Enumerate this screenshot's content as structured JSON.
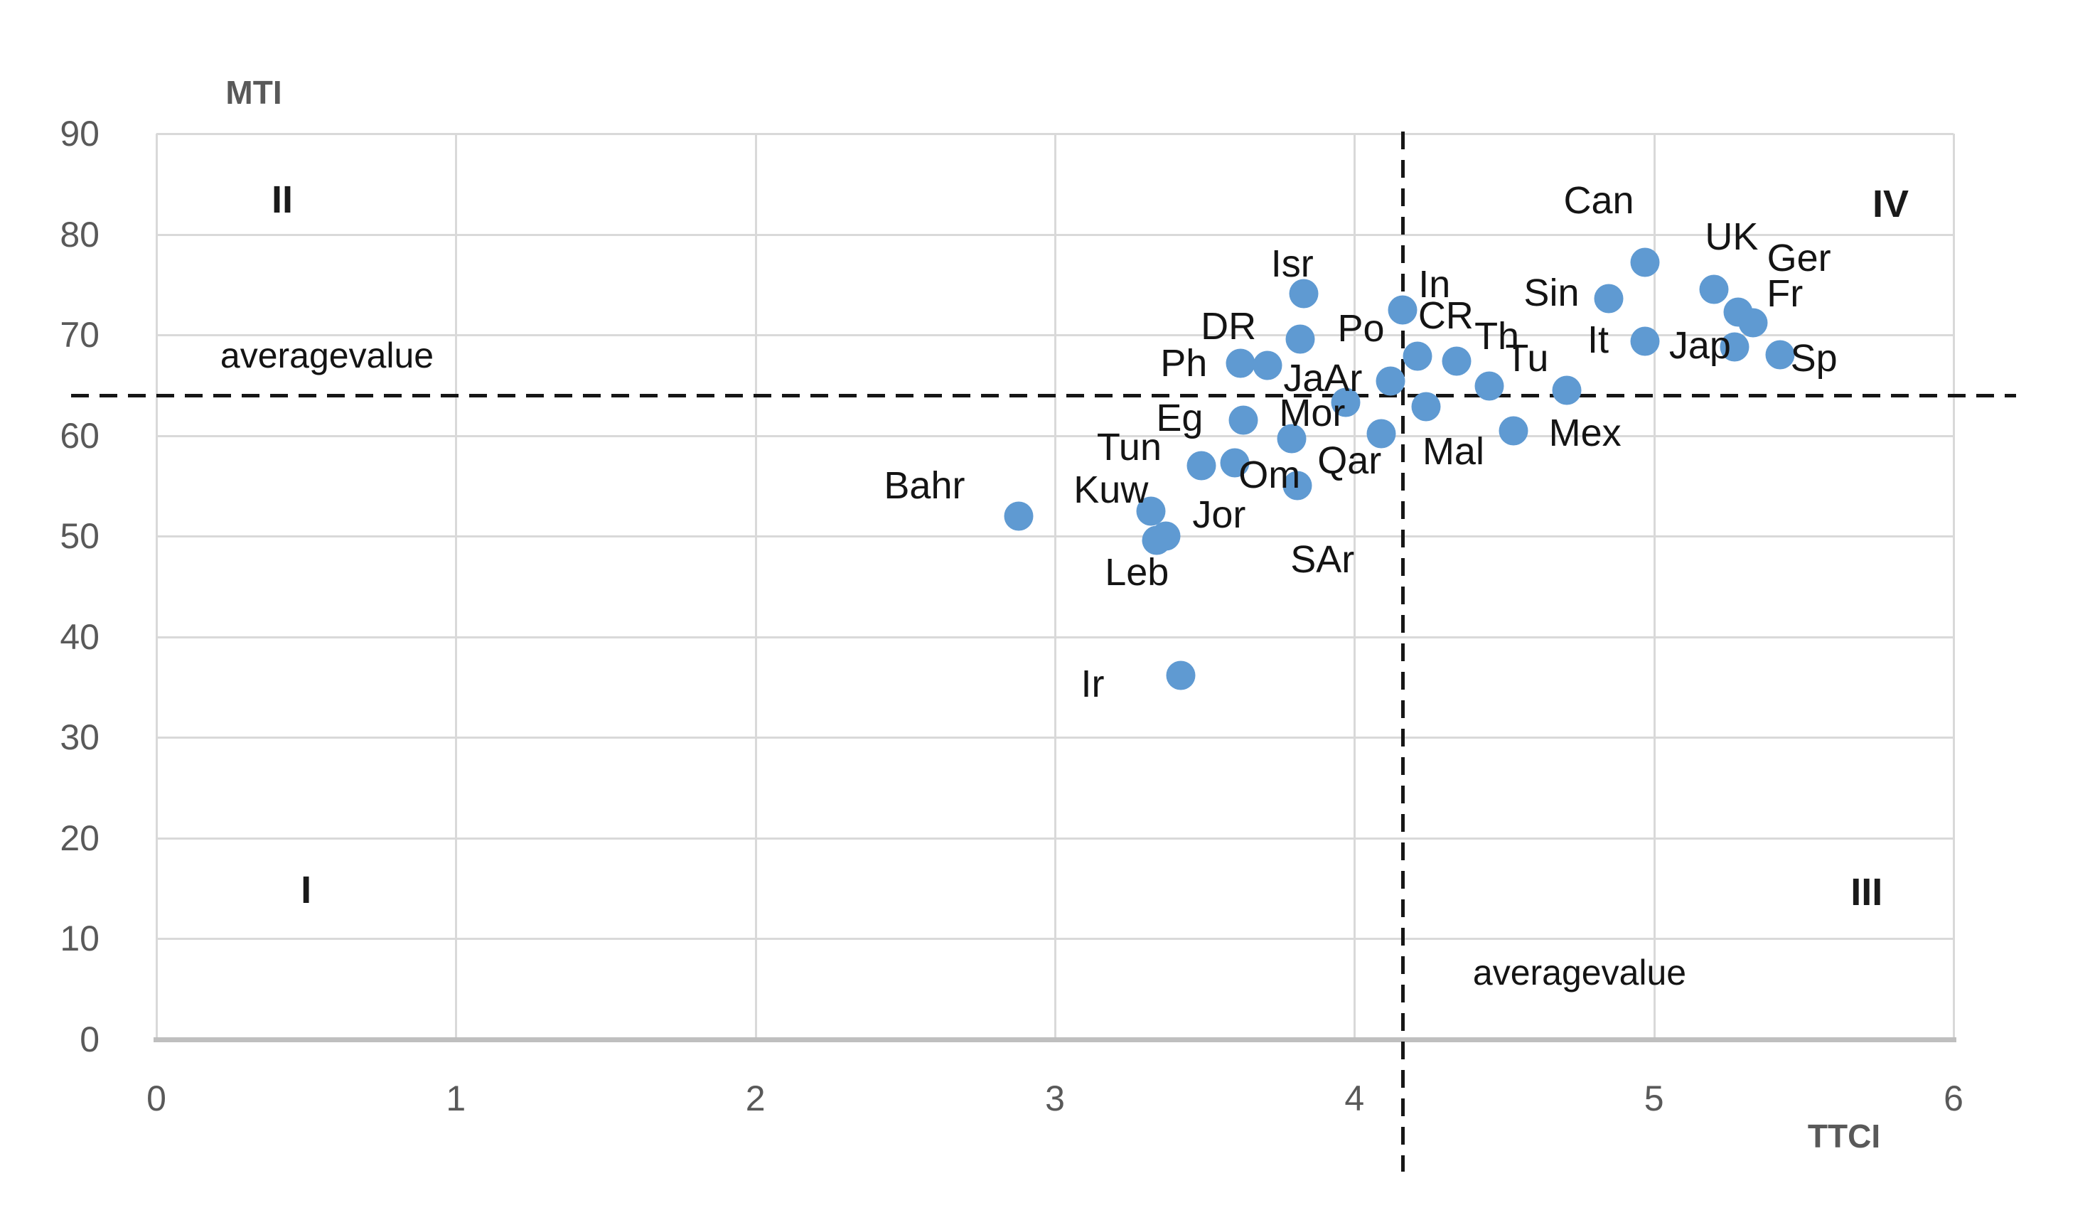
{
  "chart_data": {
    "type": "scatter",
    "title": "",
    "xlabel": "TTCI",
    "ylabel": "MTI",
    "xlim": [
      0,
      6
    ],
    "ylim": [
      0,
      90
    ],
    "x_ticks": [
      0,
      1,
      2,
      3,
      4,
      5,
      6
    ],
    "y_ticks": [
      0,
      10,
      20,
      30,
      40,
      50,
      60,
      70,
      80,
      90
    ],
    "grid": true,
    "legend": "none",
    "point_color": "#5f9ad2",
    "average_value_label": "averagevalue",
    "average_x": 4.16,
    "average_y": 64,
    "quadrants": [
      {
        "name": "I",
        "x": 0.5,
        "y": 14.8
      },
      {
        "name": "II",
        "x": 0.42,
        "y": 83.4
      },
      {
        "name": "III",
        "x": 5.71,
        "y": 14.6
      },
      {
        "name": "IV",
        "x": 5.79,
        "y": 83.0
      }
    ],
    "points": [
      {
        "label": "Bahr",
        "x": 2.88,
        "y": 52.0,
        "label_offset": [
          -133,
          -43
        ]
      },
      {
        "label": "Kuw",
        "x": 3.32,
        "y": 52.5,
        "label_offset": [
          -56,
          -30
        ]
      },
      {
        "label": "Jor",
        "x": 3.37,
        "y": 50.0,
        "label_offset": [
          75,
          -30
        ]
      },
      {
        "label": "Leb",
        "x": 3.34,
        "y": 49.6,
        "label_offset": [
          -28,
          45
        ]
      },
      {
        "label": "Ir",
        "x": 3.42,
        "y": 36.2,
        "label_offset": [
          -124,
          12
        ]
      },
      {
        "label": "Tun",
        "x": 3.49,
        "y": 57.0,
        "label_offset": [
          -102,
          -26
        ]
      },
      {
        "label": "Om",
        "x": 3.6,
        "y": 57.3,
        "label_offset": [
          49,
          17
        ]
      },
      {
        "label": "SAr",
        "x": 3.81,
        "y": 55.0,
        "label_offset": [
          35,
          104
        ]
      },
      {
        "label": "Eg",
        "x": 3.63,
        "y": 61.5,
        "label_offset": [
          -90,
          -3
        ]
      },
      {
        "label": "Mor",
        "x": 3.79,
        "y": 59.7,
        "label_offset": [
          29,
          -36
        ]
      },
      {
        "label": "Qar",
        "x": 4.09,
        "y": 60.2,
        "label_offset": [
          -45,
          38
        ]
      },
      {
        "label": "Ph",
        "x": 3.62,
        "y": 67.2,
        "label_offset": [
          -80,
          0
        ]
      },
      {
        "label": "DR",
        "x": 3.71,
        "y": 67.0,
        "label_offset": [
          -55,
          -55
        ]
      },
      {
        "label": "Isr",
        "x": 3.83,
        "y": 74.1,
        "label_offset": [
          -16,
          -42
        ]
      },
      {
        "label": "Po",
        "x": 3.82,
        "y": 69.6,
        "label_offset": [
          85,
          -15
        ]
      },
      {
        "label": "JaAr",
        "x": 4.12,
        "y": 65.4,
        "label_offset": [
          -95,
          -4
        ]
      },
      {
        "label": "In",
        "x": 4.16,
        "y": 72.5,
        "label_offset": [
          45,
          -36
        ]
      },
      {
        "label": "CR",
        "x": 4.21,
        "y": 67.9,
        "label_offset": [
          40,
          -57
        ]
      },
      {
        "label": "Th",
        "x": 4.34,
        "y": 67.4,
        "label_offset": [
          57,
          -35
        ]
      },
      {
        "label": "Tu",
        "x": 4.45,
        "y": 64.9,
        "label_offset": [
          53,
          -39
        ]
      },
      {
        "label": "",
        "x": 4.71,
        "y": 64.5,
        "label_offset": [
          0,
          0
        ]
      },
      {
        "label": "",
        "x": 3.97,
        "y": 63.3,
        "label_offset": [
          0,
          0
        ]
      },
      {
        "label": "Mal",
        "x": 4.24,
        "y": 62.9,
        "label_offset": [
          38,
          63
        ]
      },
      {
        "label": "Mex",
        "x": 4.53,
        "y": 60.5,
        "label_offset": [
          101,
          3
        ]
      },
      {
        "label": "Sin",
        "x": 4.85,
        "y": 73.6,
        "label_offset": [
          -81,
          -8
        ]
      },
      {
        "label": "Can",
        "x": 4.97,
        "y": 77.2,
        "label_offset": [
          -65,
          -87
        ]
      },
      {
        "label": "UK",
        "x": 5.2,
        "y": 74.5,
        "label_offset": [
          25,
          -74
        ]
      },
      {
        "label": "Ger",
        "x": 5.28,
        "y": 72.3,
        "label_offset": [
          86,
          -76
        ]
      },
      {
        "label": "Fr",
        "x": 5.33,
        "y": 71.2,
        "label_offset": [
          45,
          -41
        ]
      },
      {
        "label": "It",
        "x": 4.97,
        "y": 69.4,
        "label_offset": [
          -66,
          -2
        ]
      },
      {
        "label": "Jap",
        "x": 5.27,
        "y": 68.8,
        "label_offset": [
          -49,
          -2
        ]
      },
      {
        "label": "Sp",
        "x": 5.42,
        "y": 68.0,
        "label_offset": [
          48,
          5
        ]
      }
    ]
  }
}
